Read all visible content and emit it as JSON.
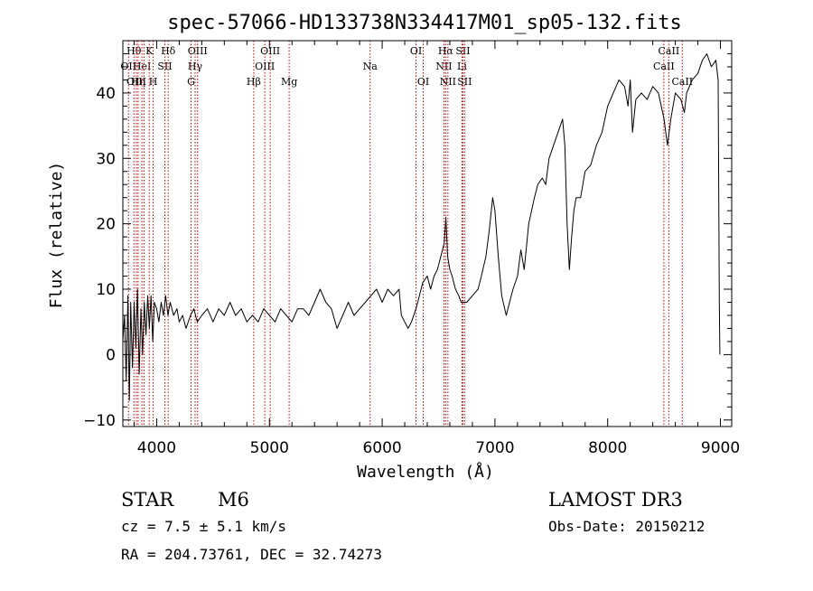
{
  "chart_data": {
    "type": "line",
    "title": "spec-57066-HD133738N334417M01_sp05-132.fits",
    "xlabel": "Wavelength (Å)",
    "ylabel": "Flux (relative)",
    "xlim": [
      3700,
      9100
    ],
    "ylim": [
      -11,
      48
    ],
    "xticks": [
      4000,
      5000,
      6000,
      7000,
      8000,
      9000
    ],
    "yticks": [
      -10,
      0,
      10,
      20,
      30,
      40
    ],
    "x_tick_labels": [
      "4000",
      "5000",
      "6000",
      "7000",
      "8000",
      "9000"
    ],
    "y_tick_labels": [
      "−10",
      "0",
      "10",
      "20",
      "30",
      "40"
    ],
    "grid": false,
    "series": [
      {
        "name": "flux",
        "color": "#000000",
        "points": [
          [
            3700,
            2
          ],
          [
            3715,
            6
          ],
          [
            3730,
            -4
          ],
          [
            3745,
            9
          ],
          [
            3758,
            -7
          ],
          [
            3770,
            8
          ],
          [
            3785,
            -2
          ],
          [
            3800,
            8
          ],
          [
            3815,
            1
          ],
          [
            3830,
            10
          ],
          [
            3845,
            -3
          ],
          [
            3860,
            7
          ],
          [
            3875,
            0
          ],
          [
            3890,
            8
          ],
          [
            3905,
            3
          ],
          [
            3920,
            9
          ],
          [
            3935,
            4
          ],
          [
            3950,
            9
          ],
          [
            3965,
            2
          ],
          [
            3980,
            8
          ],
          [
            4000,
            7
          ],
          [
            4020,
            5
          ],
          [
            4040,
            8
          ],
          [
            4060,
            6
          ],
          [
            4080,
            9
          ],
          [
            4100,
            6
          ],
          [
            4120,
            8
          ],
          [
            4150,
            6
          ],
          [
            4180,
            7
          ],
          [
            4200,
            5
          ],
          [
            4230,
            6
          ],
          [
            4260,
            4
          ],
          [
            4300,
            6
          ],
          [
            4330,
            7
          ],
          [
            4360,
            5
          ],
          [
            4400,
            6
          ],
          [
            4450,
            7
          ],
          [
            4500,
            5
          ],
          [
            4550,
            7
          ],
          [
            4600,
            6
          ],
          [
            4650,
            8
          ],
          [
            4700,
            6
          ],
          [
            4750,
            7
          ],
          [
            4800,
            5
          ],
          [
            4850,
            6
          ],
          [
            4900,
            5
          ],
          [
            4950,
            7
          ],
          [
            5000,
            6
          ],
          [
            5050,
            5
          ],
          [
            5100,
            7
          ],
          [
            5150,
            6
          ],
          [
            5200,
            5
          ],
          [
            5250,
            7
          ],
          [
            5300,
            7
          ],
          [
            5350,
            6
          ],
          [
            5400,
            8
          ],
          [
            5450,
            10
          ],
          [
            5500,
            8
          ],
          [
            5550,
            7
          ],
          [
            5600,
            4
          ],
          [
            5650,
            6
          ],
          [
            5700,
            8
          ],
          [
            5750,
            6
          ],
          [
            5800,
            7
          ],
          [
            5850,
            8
          ],
          [
            5900,
            9
          ],
          [
            5950,
            10
          ],
          [
            6000,
            8
          ],
          [
            6050,
            10
          ],
          [
            6100,
            9
          ],
          [
            6150,
            10
          ],
          [
            6170,
            6
          ],
          [
            6200,
            5
          ],
          [
            6230,
            4
          ],
          [
            6260,
            5
          ],
          [
            6300,
            7
          ],
          [
            6330,
            9
          ],
          [
            6360,
            11
          ],
          [
            6400,
            12
          ],
          [
            6430,
            10
          ],
          [
            6460,
            12
          ],
          [
            6490,
            13
          ],
          [
            6520,
            15
          ],
          [
            6550,
            17
          ],
          [
            6565,
            21
          ],
          [
            6580,
            15
          ],
          [
            6600,
            13
          ],
          [
            6620,
            12
          ],
          [
            6650,
            10
          ],
          [
            6680,
            9
          ],
          [
            6700,
            8
          ],
          [
            6750,
            8
          ],
          [
            6800,
            9
          ],
          [
            6850,
            10
          ],
          [
            6880,
            12
          ],
          [
            6920,
            15
          ],
          [
            6950,
            19
          ],
          [
            6980,
            24
          ],
          [
            7000,
            22
          ],
          [
            7030,
            15
          ],
          [
            7060,
            9
          ],
          [
            7100,
            6
          ],
          [
            7130,
            8
          ],
          [
            7160,
            10
          ],
          [
            7200,
            12
          ],
          [
            7230,
            16
          ],
          [
            7260,
            13
          ],
          [
            7300,
            20
          ],
          [
            7350,
            24
          ],
          [
            7380,
            26
          ],
          [
            7420,
            27
          ],
          [
            7450,
            26
          ],
          [
            7480,
            30
          ],
          [
            7520,
            32
          ],
          [
            7560,
            34
          ],
          [
            7600,
            36
          ],
          [
            7620,
            32
          ],
          [
            7640,
            20
          ],
          [
            7660,
            13
          ],
          [
            7680,
            18
          ],
          [
            7700,
            22
          ],
          [
            7720,
            24
          ],
          [
            7760,
            24
          ],
          [
            7800,
            28
          ],
          [
            7850,
            29
          ],
          [
            7900,
            32
          ],
          [
            7950,
            34
          ],
          [
            8000,
            38
          ],
          [
            8050,
            40
          ],
          [
            8100,
            42
          ],
          [
            8150,
            41
          ],
          [
            8180,
            38
          ],
          [
            8200,
            42
          ],
          [
            8220,
            34
          ],
          [
            8250,
            39
          ],
          [
            8300,
            40
          ],
          [
            8350,
            39
          ],
          [
            8400,
            41
          ],
          [
            8450,
            40
          ],
          [
            8500,
            36
          ],
          [
            8530,
            32
          ],
          [
            8560,
            36
          ],
          [
            8600,
            40
          ],
          [
            8650,
            39
          ],
          [
            8680,
            37
          ],
          [
            8700,
            40
          ],
          [
            8750,
            42
          ],
          [
            8800,
            43
          ],
          [
            8840,
            45
          ],
          [
            8880,
            46
          ],
          [
            8920,
            44
          ],
          [
            8960,
            45
          ],
          [
            8980,
            42
          ],
          [
            8990,
            8
          ],
          [
            8995,
            0
          ]
        ]
      }
    ],
    "line_markers": [
      {
        "wavelength": 3750,
        "color": "#cc0000",
        "label": "OII",
        "row": 1
      },
      {
        "wavelength": 3798,
        "color": "#cc0000",
        "label": "Hθ",
        "row": 0
      },
      {
        "wavelength": 3820,
        "color": "#cc0000",
        "label": "OIII",
        "row": 2
      },
      {
        "wavelength": 3835,
        "color": "#cc0000",
        "label": "Hη",
        "row": 2
      },
      {
        "wavelength": 3869,
        "color": "#cc0000",
        "label": "HeI",
        "row": 1
      },
      {
        "wavelength": 3889,
        "color": "#cc0000",
        "label": "",
        "row": 0
      },
      {
        "wavelength": 3934,
        "color": "#cc0000",
        "label": "K",
        "row": 0
      },
      {
        "wavelength": 3969,
        "color": "#cc0000",
        "label": "H",
        "row": 2
      },
      {
        "wavelength": 4072,
        "color": "#cc0000",
        "label": "SII",
        "row": 1
      },
      {
        "wavelength": 4102,
        "color": "#cc0000",
        "label": "Hδ",
        "row": 0
      },
      {
        "wavelength": 4305,
        "color": "#cc0000",
        "label": "G",
        "row": 2
      },
      {
        "wavelength": 4341,
        "color": "#cc0000",
        "label": "Hγ",
        "row": 1
      },
      {
        "wavelength": 4363,
        "color": "#cc0000",
        "label": "OIII",
        "row": 0
      },
      {
        "wavelength": 4861,
        "color": "#cc0000",
        "label": "Hβ",
        "row": 2
      },
      {
        "wavelength": 4959,
        "color": "#cc0000",
        "label": "OIII",
        "row": 1
      },
      {
        "wavelength": 5007,
        "color": "#cc0000",
        "label": "OIII",
        "row": 0
      },
      {
        "wavelength": 5175,
        "color": "#cc0000",
        "label": "Mg",
        "row": 2
      },
      {
        "wavelength": 5893,
        "color": "#cc0000",
        "label": "Na",
        "row": 1
      },
      {
        "wavelength": 6300,
        "color": "#cc0000",
        "label": "OI",
        "row": 0
      },
      {
        "wavelength": 6364,
        "color": "#cc0000",
        "label": "OI",
        "row": 2
      },
      {
        "wavelength": 6548,
        "color": "#cc0000",
        "label": "NII",
        "row": 1
      },
      {
        "wavelength": 6563,
        "color": "#cc0000",
        "label": "Hα",
        "row": 0
      },
      {
        "wavelength": 6583,
        "color": "#cc0000",
        "label": "NII",
        "row": 2
      },
      {
        "wavelength": 6708,
        "color": "#cc0000",
        "label": "Li",
        "row": 1
      },
      {
        "wavelength": 6716,
        "color": "#cc0000",
        "label": "SII",
        "row": 0
      },
      {
        "wavelength": 6731,
        "color": "#cc0000",
        "label": "SII",
        "row": 2
      },
      {
        "wavelength": 8498,
        "color": "#cc0000",
        "label": "CaII",
        "row": 1
      },
      {
        "wavelength": 8542,
        "color": "#cc0000",
        "label": "CaII",
        "row": 0
      },
      {
        "wavelength": 8662,
        "color": "#cc0000",
        "label": "CaII",
        "row": 2
      }
    ]
  },
  "info": {
    "object_class": "STAR",
    "subclass": "M6",
    "survey": "LAMOST DR3",
    "cz": "cz = 7.5 ± 5.1 km/s",
    "obs_date": "Obs-Date: 20150212",
    "coords": "RA = 204.73761, DEC =  32.74273"
  }
}
